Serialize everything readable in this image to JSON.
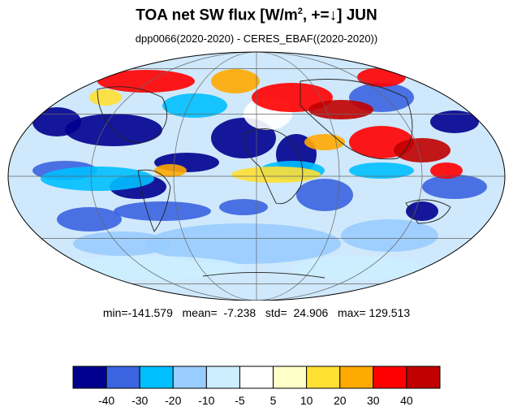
{
  "header": {
    "title_main": "TOA net SW flux [W/m",
    "title_sup": "2",
    "title_rest": ", +=↓]  JUN",
    "subtitle": "dpp0066(2020-2020) - CERES_EBAF((2020-2020))"
  },
  "stats": {
    "text": "min=-141.579   mean=  -7.238   std=  24.906   max= 129.513",
    "min": -141.579,
    "mean": -7.238,
    "std": 24.906,
    "max": 129.513
  },
  "map": {
    "projection": "mollweide",
    "grid": true,
    "coastlines": true
  },
  "colorbar": {
    "colors": [
      "#00008f",
      "#3a64e0",
      "#00bfff",
      "#99ccff",
      "#cceeff",
      "#ffffff",
      "#ffffc8",
      "#ffe033",
      "#ffaa00",
      "#ff0000",
      "#c00000"
    ],
    "labels": [
      "-40",
      "-30",
      "-20",
      "-10",
      "-5",
      "5",
      "10",
      "20",
      "30",
      "40"
    ]
  }
}
